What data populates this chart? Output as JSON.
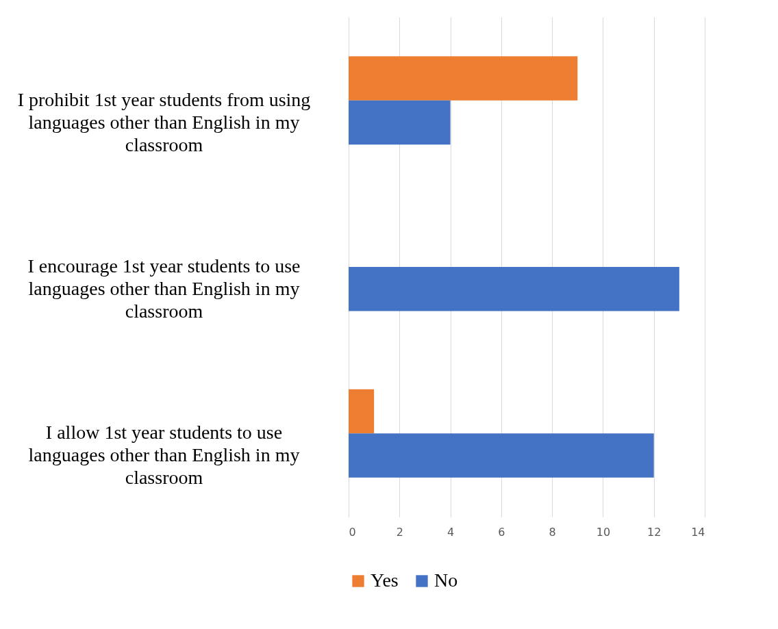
{
  "chart_data": {
    "type": "bar",
    "orientation": "horizontal",
    "categories": [
      "I prohibit 1st year students from using languages other than English in my classroom",
      "I encourage 1st year students to use languages other than English in my classroom",
      "I allow 1st year students to use languages other than English in my classroom"
    ],
    "series": [
      {
        "name": "Yes",
        "color": "#ed7d31",
        "values": [
          9,
          0,
          1
        ]
      },
      {
        "name": "No",
        "color": "#4472c4",
        "values": [
          4,
          13,
          12
        ]
      }
    ],
    "xlim": [
      0,
      14
    ],
    "xticks": [
      0,
      2,
      4,
      6,
      8,
      10,
      12,
      14
    ],
    "grid": "x",
    "legend": "bottom"
  }
}
